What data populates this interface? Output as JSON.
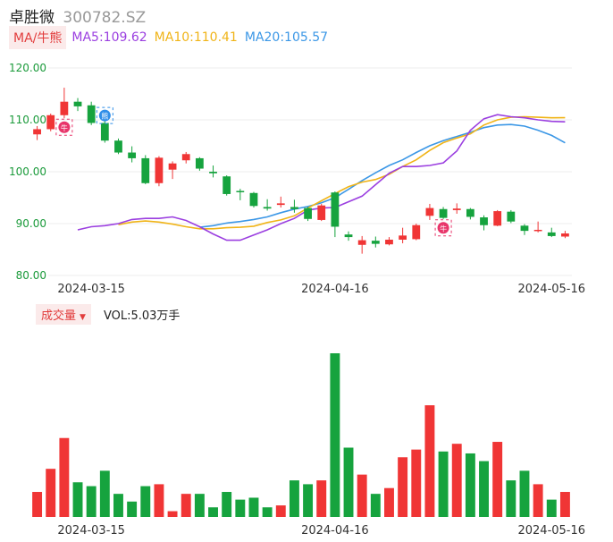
{
  "header": {
    "name": "卓胜微",
    "code": "300782.SZ"
  },
  "ma_row": {
    "chip_label": "MA/牛熊",
    "ma5": "MA5:109.62",
    "ma10": "MA10:110.41",
    "ma20": "MA20:105.57"
  },
  "volume_row": {
    "chip_label": "成交量",
    "caret": "▼",
    "vol": "VOL:5.03万手"
  },
  "colors": {
    "up": "#f03535",
    "down": "#16a33e",
    "ma5": "#9b3fe0",
    "ma10": "#f0b418",
    "ma20": "#3b97e6",
    "tick": "#1a9a3a"
  },
  "chart_data": {
    "type": "candlestick",
    "y_ticks": [
      "120.00",
      "110.00",
      "100.00",
      "90.00",
      "80.00"
    ],
    "ylim": [
      80,
      120
    ],
    "x_ticks": [
      "2024-03-15",
      "2024-04-16",
      "2024-05-16"
    ],
    "x_tick_index": [
      4,
      22,
      38
    ],
    "grid": true,
    "markers": [
      {
        "index": 2,
        "label": "牛",
        "position": "below",
        "color": "#e8356a"
      },
      {
        "index": 5,
        "label": "熊",
        "position": "above",
        "color": "#2f8ee8"
      },
      {
        "index": 30,
        "label": "牛",
        "position": "below",
        "color": "#e8356a"
      }
    ],
    "candles": [
      {
        "o": 107.2,
        "c": 108.2,
        "h": 108.8,
        "l": 106.1
      },
      {
        "o": 108.2,
        "c": 110.9,
        "h": 111.2,
        "l": 107.8
      },
      {
        "o": 110.9,
        "c": 113.5,
        "h": 116.2,
        "l": 110.3
      },
      {
        "o": 113.5,
        "c": 112.6,
        "h": 114.2,
        "l": 111.7
      },
      {
        "o": 112.8,
        "c": 109.4,
        "h": 113.5,
        "l": 109.0
      },
      {
        "o": 109.4,
        "c": 106.0,
        "h": 110.5,
        "l": 105.6
      },
      {
        "o": 106.0,
        "c": 103.7,
        "h": 106.4,
        "l": 103.4
      },
      {
        "o": 103.7,
        "c": 102.6,
        "h": 104.9,
        "l": 101.8
      },
      {
        "o": 102.6,
        "c": 97.8,
        "h": 103.2,
        "l": 97.6
      },
      {
        "o": 97.8,
        "c": 102.7,
        "h": 103.0,
        "l": 97.2
      },
      {
        "o": 100.4,
        "c": 101.6,
        "h": 102.0,
        "l": 98.6
      },
      {
        "o": 102.2,
        "c": 103.4,
        "h": 103.8,
        "l": 101.6
      },
      {
        "o": 102.6,
        "c": 100.6,
        "h": 102.8,
        "l": 100.2
      },
      {
        "o": 100.0,
        "c": 99.7,
        "h": 101.2,
        "l": 98.9
      },
      {
        "o": 99.1,
        "c": 95.7,
        "h": 99.3,
        "l": 95.4
      },
      {
        "o": 96.3,
        "c": 96.1,
        "h": 96.7,
        "l": 94.5
      },
      {
        "o": 95.9,
        "c": 93.4,
        "h": 96.1,
        "l": 93.1
      },
      {
        "o": 93.2,
        "c": 92.9,
        "h": 94.7,
        "l": 92.5
      },
      {
        "o": 93.6,
        "c": 93.9,
        "h": 95.2,
        "l": 93.1
      },
      {
        "o": 93.2,
        "c": 92.8,
        "h": 94.6,
        "l": 92.1
      },
      {
        "o": 93.0,
        "c": 90.9,
        "h": 93.2,
        "l": 90.5
      },
      {
        "o": 90.7,
        "c": 93.5,
        "h": 93.8,
        "l": 90.5
      },
      {
        "o": 96.0,
        "c": 89.4,
        "h": 96.2,
        "l": 87.4
      },
      {
        "o": 87.9,
        "c": 87.4,
        "h": 88.5,
        "l": 86.7
      },
      {
        "o": 85.9,
        "c": 86.8,
        "h": 87.6,
        "l": 84.2
      },
      {
        "o": 86.7,
        "c": 86.1,
        "h": 87.5,
        "l": 85.4
      },
      {
        "o": 86.0,
        "c": 86.9,
        "h": 87.4,
        "l": 85.8
      },
      {
        "o": 86.9,
        "c": 87.7,
        "h": 89.2,
        "l": 86.2
      },
      {
        "o": 87.0,
        "c": 89.7,
        "h": 90.0,
        "l": 86.8
      },
      {
        "o": 91.5,
        "c": 93.0,
        "h": 93.8,
        "l": 90.7
      },
      {
        "o": 92.8,
        "c": 91.1,
        "h": 93.2,
        "l": 90.9
      },
      {
        "o": 92.6,
        "c": 92.9,
        "h": 93.9,
        "l": 91.9
      },
      {
        "o": 92.8,
        "c": 91.3,
        "h": 93.0,
        "l": 90.8
      },
      {
        "o": 91.2,
        "c": 89.7,
        "h": 91.6,
        "l": 88.7
      },
      {
        "o": 89.6,
        "c": 92.4,
        "h": 92.6,
        "l": 89.5
      },
      {
        "o": 92.3,
        "c": 90.4,
        "h": 92.6,
        "l": 90.1
      },
      {
        "o": 89.6,
        "c": 88.6,
        "h": 89.9,
        "l": 87.8
      },
      {
        "o": 88.6,
        "c": 88.8,
        "h": 90.4,
        "l": 88.3
      },
      {
        "o": 88.3,
        "c": 87.6,
        "h": 89.2,
        "l": 87.4
      },
      {
        "o": 87.5,
        "c": 88.1,
        "h": 88.6,
        "l": 87.2
      }
    ],
    "ma5": [
      88.8,
      89.4,
      89.6,
      90.0,
      90.8,
      91.0,
      91.0,
      91.3,
      90.6,
      89.4,
      88.0,
      86.8,
      86.8,
      87.8,
      88.8,
      90.0,
      91.0,
      92.6,
      93.0,
      93.1,
      94.2,
      95.3,
      97.5,
      99.7,
      101.0,
      101.0,
      101.2,
      101.7,
      104.0,
      108.0,
      110.2,
      111.0,
      110.6,
      110.4,
      110.0,
      109.7,
      109.62
    ],
    "ma10": [
      89.8,
      90.3,
      90.5,
      90.3,
      89.9,
      89.4,
      89.0,
      89.0,
      89.2,
      89.3,
      89.5,
      90.2,
      90.7,
      91.5,
      93.0,
      94.4,
      95.8,
      97.1,
      98.0,
      98.5,
      99.5,
      101.0,
      102.3,
      104.1,
      105.6,
      106.5,
      107.3,
      109.0,
      110.0,
      110.5,
      110.6,
      110.5,
      110.4,
      110.41
    ],
    "ma20": [
      89.3,
      89.6,
      90.1,
      90.4,
      90.8,
      91.3,
      92.1,
      92.8,
      93.3,
      94.0,
      95.0,
      96.6,
      98.3,
      99.8,
      101.2,
      102.3,
      103.7,
      105.0,
      106.0,
      106.8,
      107.6,
      108.5,
      109.0,
      109.1,
      108.8,
      108.0,
      107.0,
      105.57
    ],
    "volume": [
      13,
      25,
      41,
      18,
      16,
      24,
      12,
      8,
      16,
      17,
      3,
      12,
      12,
      5,
      13,
      9,
      10,
      5,
      6,
      19,
      17,
      19,
      85,
      36,
      22,
      12,
      15,
      31,
      35,
      58,
      34,
      38,
      33,
      29,
      39,
      19,
      24,
      17,
      9,
      13
    ]
  }
}
